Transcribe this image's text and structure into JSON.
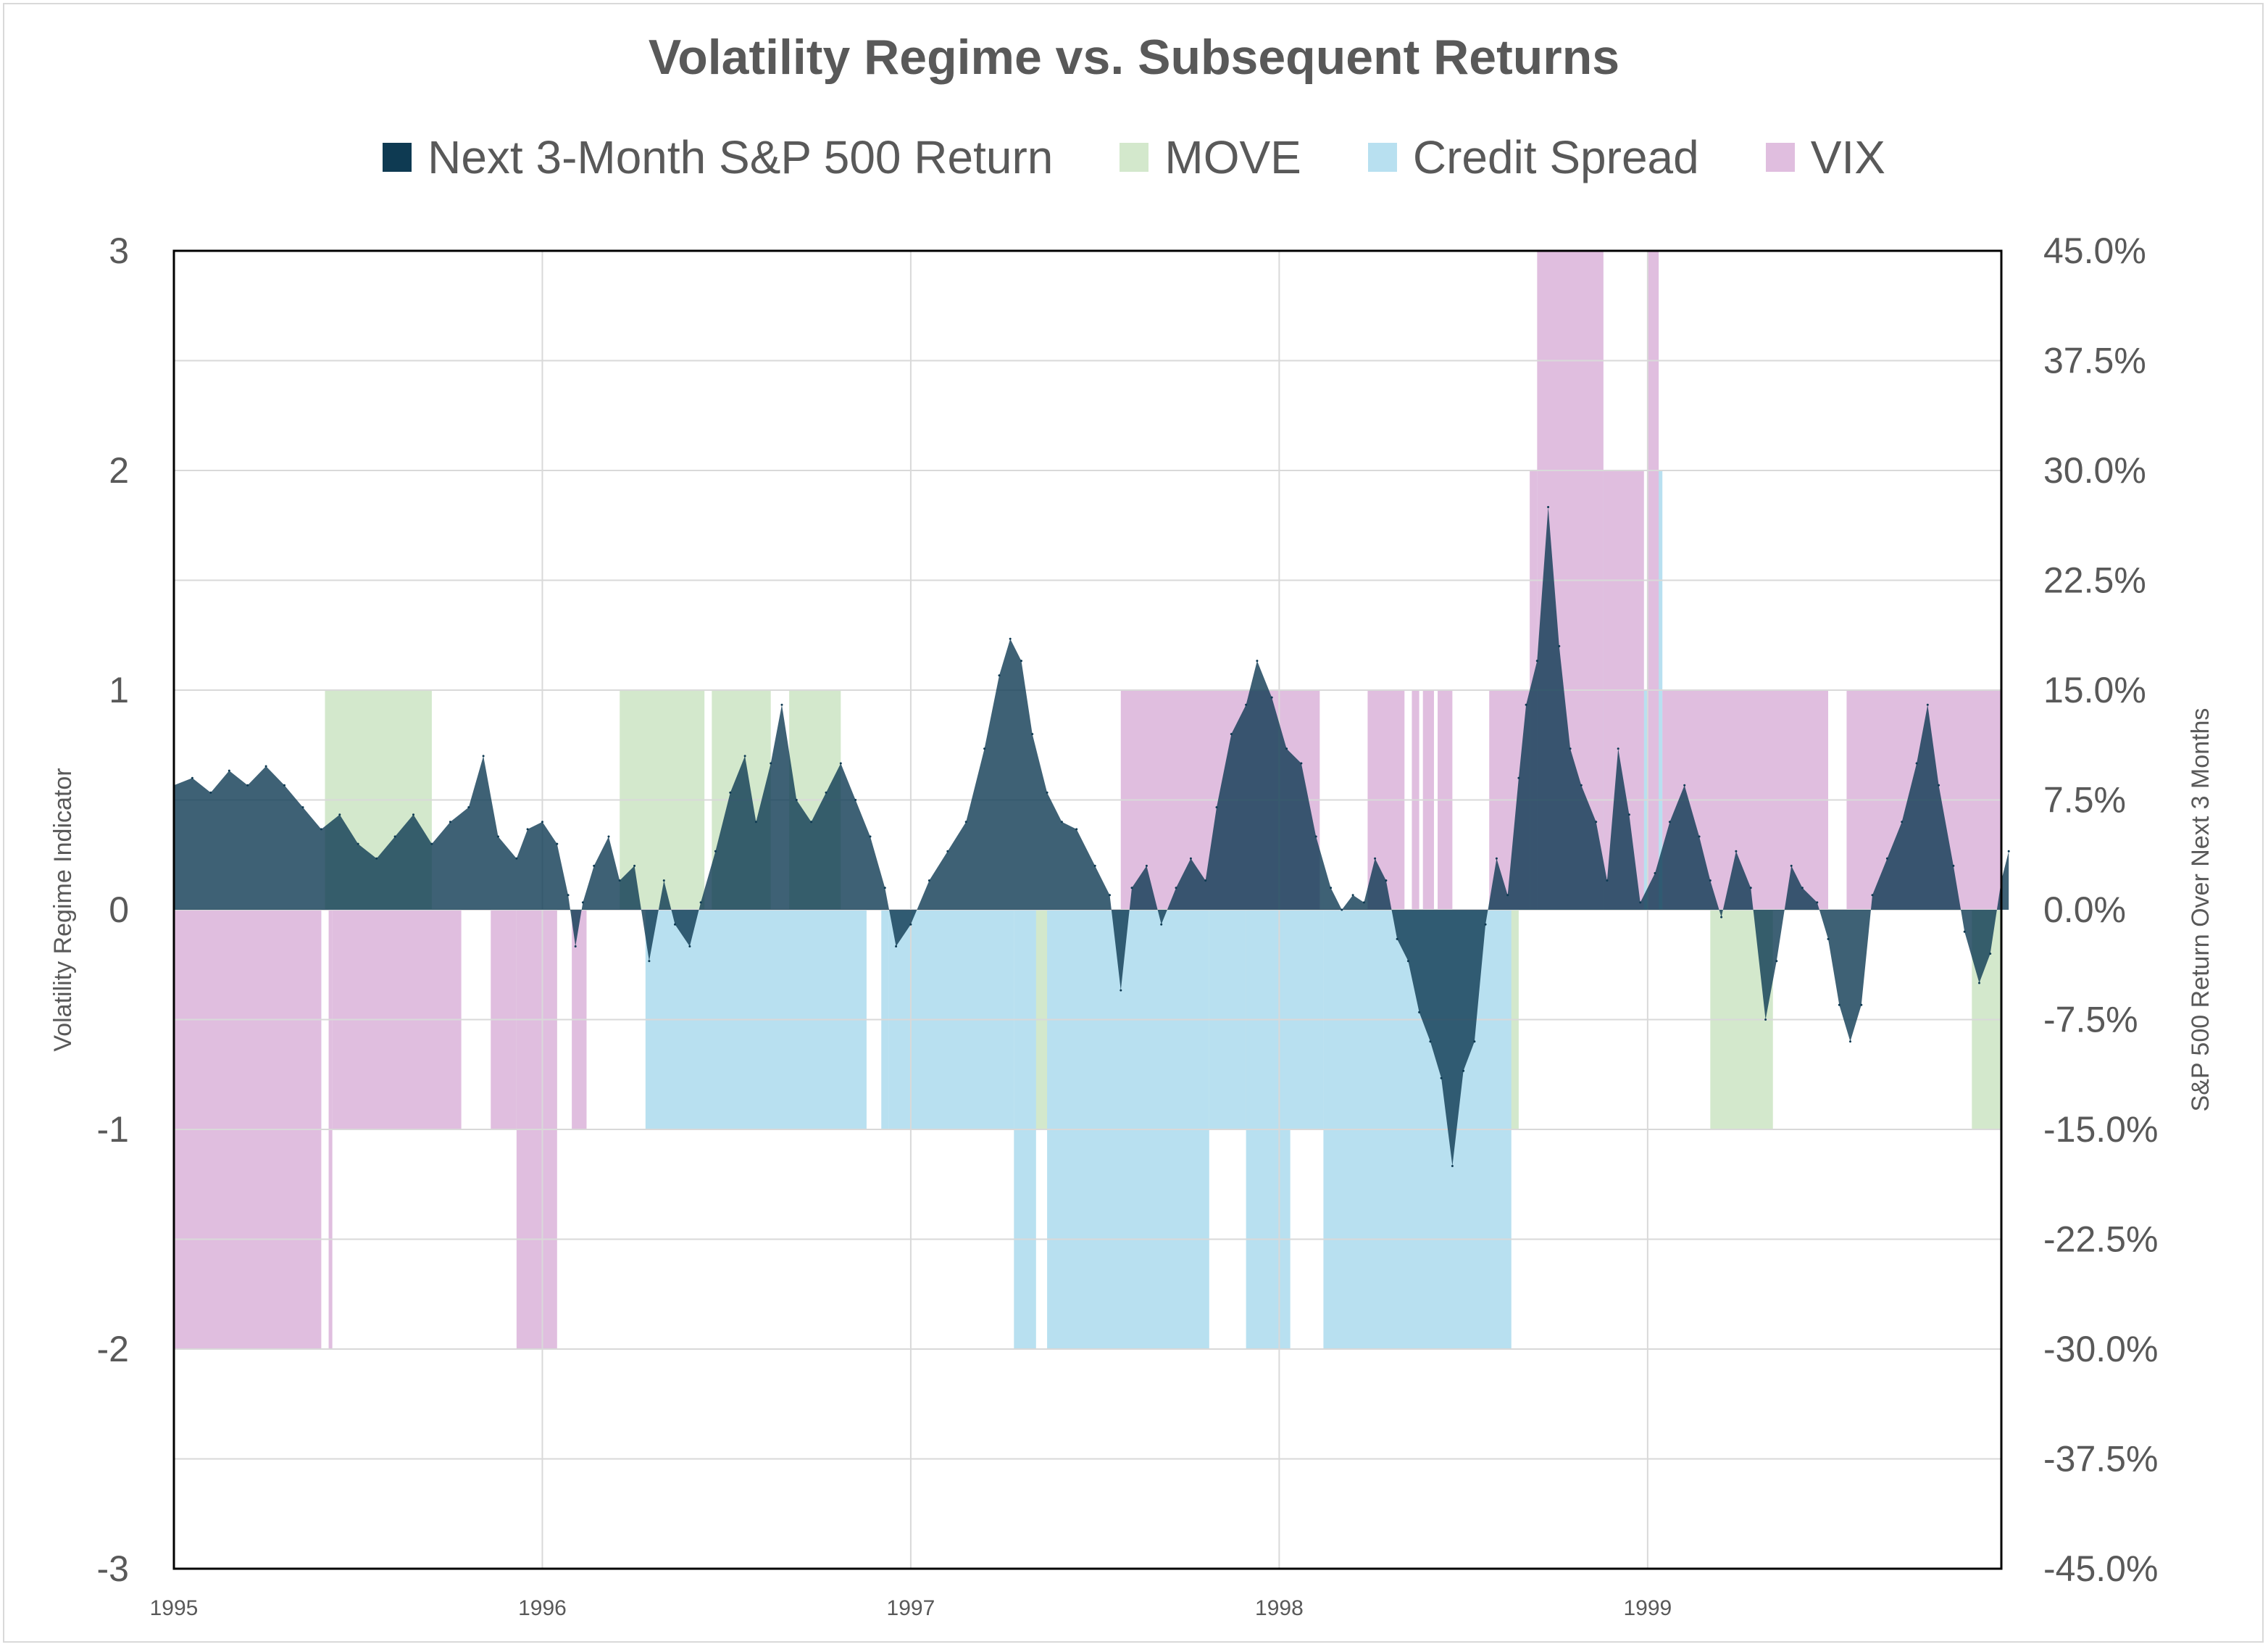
{
  "chart_data": {
    "type": "area",
    "title": "Volatility Regime vs. Subsequent Returns",
    "legend": [
      {
        "name": "Next 3-Month S&P 500 Return",
        "color": "#0e3a52"
      },
      {
        "name": "MOVE",
        "color": "#d3e8cc"
      },
      {
        "name": "Credit Spread",
        "color": "#b8e0f0"
      },
      {
        "name": "VIX",
        "color": "#e0bedf"
      }
    ],
    "legend_position": "top",
    "xlabel": "",
    "ylabel_left": "Volatility Regime Indicator",
    "ylabel_right": "S&P 500 Return Over Next 3 Months",
    "x_ticks": [
      "1995",
      "1996",
      "1997",
      "1998",
      "1999"
    ],
    "x_range": [
      "1995-01",
      "1999-12"
    ],
    "ylim_left": [
      -3,
      3
    ],
    "yticks_left": [
      "3",
      "2",
      "1",
      "0",
      "-1",
      "-2",
      "-3"
    ],
    "ylim_right": [
      -45,
      45
    ],
    "yticks_right": [
      "45.0%",
      "37.5%",
      "30.0%",
      "22.5%",
      "15.0%",
      "7.5%",
      "0.0%",
      "-7.5%",
      "-15.0%",
      "-22.5%",
      "-30.0%",
      "-37.5%",
      "-45.0%"
    ],
    "grid": true,
    "regimes": {
      "MOVE": [
        {
          "start": 1995.41,
          "end": 1995.7,
          "value": 1
        },
        {
          "start": 1995.93,
          "end": 1996.04,
          "value": -1
        },
        {
          "start": 1996.21,
          "end": 1996.44,
          "value": 1
        },
        {
          "start": 1996.46,
          "end": 1996.62,
          "value": 1
        },
        {
          "start": 1996.67,
          "end": 1996.81,
          "value": 1
        },
        {
          "start": 1997.28,
          "end": 1997.81,
          "value": -1
        },
        {
          "start": 1997.91,
          "end": 1998.02,
          "value": -1
        },
        {
          "start": 1998.12,
          "end": 1998.65,
          "value": -1
        },
        {
          "start": 1998.7,
          "end": 1998.92,
          "value": 1
        },
        {
          "start": 1999.17,
          "end": 1999.34,
          "value": -1
        },
        {
          "start": 1999.88,
          "end": 1999.96,
          "value": -1
        }
      ],
      "Credit Spread": [
        {
          "start": 1995.0,
          "end": 1995.4,
          "value": -1
        },
        {
          "start": 1996.28,
          "end": 1996.88,
          "value": -1
        },
        {
          "start": 1996.92,
          "end": 1996.94,
          "value": -1
        },
        {
          "start": 1996.94,
          "end": 1997.28,
          "value": -1
        },
        {
          "start": 1997.28,
          "end": 1997.34,
          "value": -2
        },
        {
          "start": 1997.37,
          "end": 1997.81,
          "value": -2
        },
        {
          "start": 1997.81,
          "end": 1997.91,
          "value": -1
        },
        {
          "start": 1997.91,
          "end": 1998.03,
          "value": -2
        },
        {
          "start": 1998.02,
          "end": 1998.12,
          "value": -1
        },
        {
          "start": 1998.12,
          "end": 1998.63,
          "value": -2
        },
        {
          "start": 1998.7,
          "end": 1998.88,
          "value": 2
        },
        {
          "start": 1998.88,
          "end": 1999.04,
          "value": 1
        },
        {
          "start": 1999.0,
          "end": 1999.04,
          "value": 2
        }
      ],
      "VIX": [
        {
          "start": 1995.0,
          "end": 1995.4,
          "value": -2
        },
        {
          "start": 1995.42,
          "end": 1995.43,
          "value": -2
        },
        {
          "start": 1995.43,
          "end": 1995.78,
          "value": -1
        },
        {
          "start": 1995.86,
          "end": 1995.93,
          "value": -1
        },
        {
          "start": 1995.93,
          "end": 1996.04,
          "value": -2
        },
        {
          "start": 1996.08,
          "end": 1996.12,
          "value": -1
        },
        {
          "start": 1997.57,
          "end": 1998.11,
          "value": 1
        },
        {
          "start": 1998.24,
          "end": 1998.34,
          "value": 1
        },
        {
          "start": 1998.36,
          "end": 1998.38,
          "value": 1
        },
        {
          "start": 1998.39,
          "end": 1998.42,
          "value": 1
        },
        {
          "start": 1998.43,
          "end": 1998.47,
          "value": 1
        },
        {
          "start": 1998.57,
          "end": 1998.68,
          "value": 1
        },
        {
          "start": 1998.68,
          "end": 1998.7,
          "value": 2
        },
        {
          "start": 1998.7,
          "end": 1998.88,
          "value": 3
        },
        {
          "start": 1998.88,
          "end": 1998.99,
          "value": 2
        },
        {
          "start": 1999.0,
          "end": 1999.03,
          "value": 3
        },
        {
          "start": 1999.04,
          "end": 1999.49,
          "value": 1
        },
        {
          "start": 1999.54,
          "end": 1999.96,
          "value": 1
        }
      ]
    },
    "series": [
      {
        "name": "Next 3-Month S&P 500 Return",
        "unit": "%",
        "points": [
          [
            1995.0,
            8.5
          ],
          [
            1995.05,
            9.0
          ],
          [
            1995.1,
            8.0
          ],
          [
            1995.15,
            9.5
          ],
          [
            1995.2,
            8.5
          ],
          [
            1995.25,
            9.8
          ],
          [
            1995.3,
            8.5
          ],
          [
            1995.35,
            7.0
          ],
          [
            1995.4,
            5.5
          ],
          [
            1995.45,
            6.5
          ],
          [
            1995.5,
            4.5
          ],
          [
            1995.55,
            3.5
          ],
          [
            1995.6,
            5.0
          ],
          [
            1995.65,
            6.5
          ],
          [
            1995.7,
            4.5
          ],
          [
            1995.75,
            6.0
          ],
          [
            1995.8,
            7.0
          ],
          [
            1995.84,
            10.5
          ],
          [
            1995.88,
            5.0
          ],
          [
            1995.93,
            3.5
          ],
          [
            1995.96,
            5.5
          ],
          [
            1996.0,
            6.0
          ],
          [
            1996.04,
            4.5
          ],
          [
            1996.07,
            1.0
          ],
          [
            1996.09,
            -2.5
          ],
          [
            1996.11,
            0.5
          ],
          [
            1996.14,
            3.0
          ],
          [
            1996.18,
            5.0
          ],
          [
            1996.21,
            2.0
          ],
          [
            1996.25,
            3.0
          ],
          [
            1996.29,
            -3.5
          ],
          [
            1996.33,
            2.0
          ],
          [
            1996.36,
            -1.0
          ],
          [
            1996.4,
            -2.5
          ],
          [
            1996.43,
            0.5
          ],
          [
            1996.47,
            4.0
          ],
          [
            1996.51,
            8.0
          ],
          [
            1996.55,
            10.5
          ],
          [
            1996.58,
            6.0
          ],
          [
            1996.62,
            10.0
          ],
          [
            1996.65,
            14.0
          ],
          [
            1996.69,
            7.5
          ],
          [
            1996.73,
            6.0
          ],
          [
            1996.77,
            8.0
          ],
          [
            1996.81,
            10.0
          ],
          [
            1996.85,
            7.5
          ],
          [
            1996.89,
            5.0
          ],
          [
            1996.93,
            1.5
          ],
          [
            1996.96,
            -2.5
          ],
          [
            1997.0,
            -1.0
          ],
          [
            1997.05,
            2.0
          ],
          [
            1997.1,
            4.0
          ],
          [
            1997.15,
            6.0
          ],
          [
            1997.2,
            11.0
          ],
          [
            1997.24,
            16.0
          ],
          [
            1997.27,
            18.5
          ],
          [
            1997.3,
            17.0
          ],
          [
            1997.33,
            12.0
          ],
          [
            1997.37,
            8.0
          ],
          [
            1997.41,
            6.0
          ],
          [
            1997.45,
            5.5
          ],
          [
            1997.5,
            3.0
          ],
          [
            1997.54,
            1.0
          ],
          [
            1997.57,
            -5.5
          ],
          [
            1997.6,
            1.5
          ],
          [
            1997.64,
            3.0
          ],
          [
            1997.68,
            -1.0
          ],
          [
            1997.72,
            1.5
          ],
          [
            1997.76,
            3.5
          ],
          [
            1997.8,
            2.0
          ],
          [
            1997.83,
            7.0
          ],
          [
            1997.87,
            12.0
          ],
          [
            1997.91,
            14.0
          ],
          [
            1997.94,
            17.0
          ],
          [
            1997.98,
            14.5
          ],
          [
            1998.02,
            11.0
          ],
          [
            1998.06,
            10.0
          ],
          [
            1998.1,
            5.0
          ],
          [
            1998.14,
            1.5
          ],
          [
            1998.17,
            0.0
          ],
          [
            1998.2,
            1.0
          ],
          [
            1998.23,
            0.5
          ],
          [
            1998.26,
            3.5
          ],
          [
            1998.29,
            2.0
          ],
          [
            1998.32,
            -2.0
          ],
          [
            1998.35,
            -3.5
          ],
          [
            1998.38,
            -7.0
          ],
          [
            1998.41,
            -9.0
          ],
          [
            1998.44,
            -11.5
          ],
          [
            1998.47,
            -17.5
          ],
          [
            1998.5,
            -11.0
          ],
          [
            1998.53,
            -9.0
          ],
          [
            1998.56,
            -1.0
          ],
          [
            1998.59,
            3.5
          ],
          [
            1998.62,
            1.0
          ],
          [
            1998.65,
            9.0
          ],
          [
            1998.67,
            14.0
          ],
          [
            1998.7,
            17.0
          ],
          [
            1998.73,
            27.5
          ],
          [
            1998.76,
            18.0
          ],
          [
            1998.79,
            11.0
          ],
          [
            1998.82,
            8.5
          ],
          [
            1998.86,
            6.0
          ],
          [
            1998.89,
            2.0
          ],
          [
            1998.92,
            11.0
          ],
          [
            1998.95,
            6.5
          ],
          [
            1998.98,
            0.5
          ],
          [
            1999.02,
            2.5
          ],
          [
            1999.06,
            6.0
          ],
          [
            1999.1,
            8.5
          ],
          [
            1999.14,
            5.0
          ],
          [
            1999.17,
            2.0
          ],
          [
            1999.2,
            -0.5
          ],
          [
            1999.24,
            4.0
          ],
          [
            1999.28,
            1.5
          ],
          [
            1999.32,
            -7.5
          ],
          [
            1999.35,
            -3.5
          ],
          [
            1999.39,
            3.0
          ],
          [
            1999.42,
            1.5
          ],
          [
            1999.46,
            0.5
          ],
          [
            1999.49,
            -2.0
          ],
          [
            1999.52,
            -6.5
          ],
          [
            1999.55,
            -9.0
          ],
          [
            1999.58,
            -6.5
          ],
          [
            1999.61,
            1.0
          ],
          [
            1999.65,
            3.5
          ],
          [
            1999.69,
            6.0
          ],
          [
            1999.73,
            10.0
          ],
          [
            1999.76,
            14.0
          ],
          [
            1999.79,
            8.5
          ],
          [
            1999.83,
            3.0
          ],
          [
            1999.86,
            -1.5
          ],
          [
            1999.9,
            -5.0
          ],
          [
            1999.93,
            -3.0
          ],
          [
            1999.96,
            2.0
          ],
          [
            1999.98,
            4.0
          ]
        ]
      }
    ]
  }
}
